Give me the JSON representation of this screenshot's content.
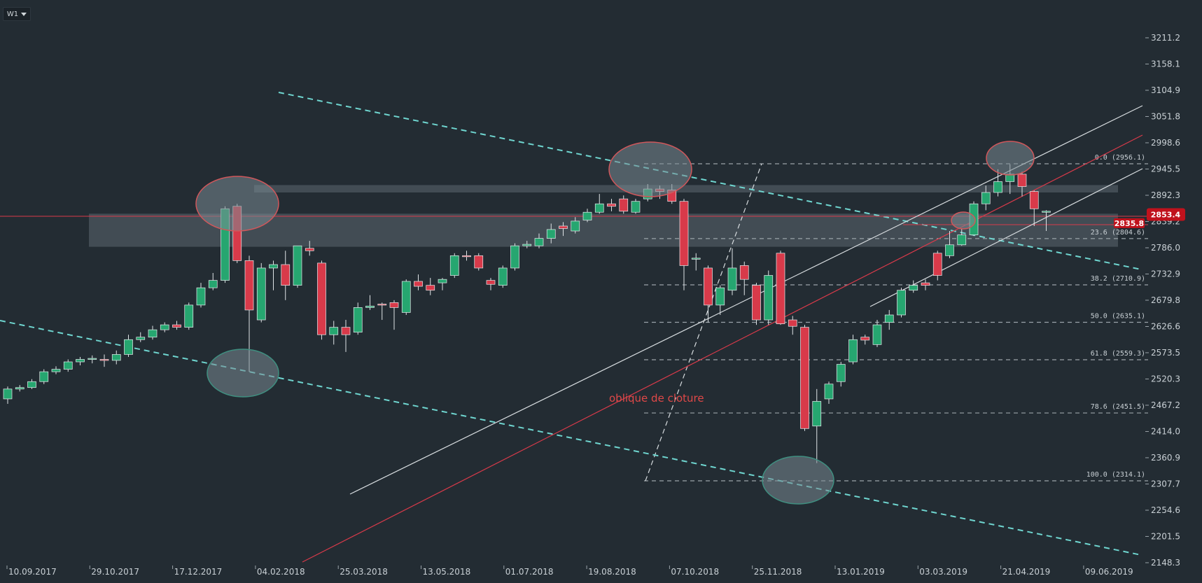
{
  "toolbar": {
    "timeframe": "W1"
  },
  "chart_data": {
    "type": "candlestick",
    "y_ticks": [
      3211.2,
      3158.1,
      3104.9,
      3051.8,
      2998.6,
      2945.5,
      2892.3,
      2839.2,
      2786.0,
      2732.9,
      2679.8,
      2626.6,
      2573.5,
      2520.3,
      2467.2,
      2414.0,
      2360.9,
      2307.7,
      2254.6,
      2201.5,
      2148.3
    ],
    "x_labels": [
      "10.09.2017",
      "29.10.2017",
      "17.12.2017",
      "04.02.2018",
      "25.03.2018",
      "13.05.2018",
      "01.07.2018",
      "19.08.2018",
      "07.10.2018",
      "25.11.2018",
      "13.01.2019",
      "03.03.2019",
      "21.04.2019",
      "09.06.2019"
    ],
    "candles": [
      [
        2480,
        2500,
        2470,
        2505
      ],
      [
        2500,
        2503,
        2495,
        2508
      ],
      [
        2503,
        2515,
        2500,
        2520
      ],
      [
        2515,
        2535,
        2510,
        2540
      ],
      [
        2535,
        2540,
        2530,
        2546
      ],
      [
        2540,
        2555,
        2535,
        2560
      ],
      [
        2555,
        2560,
        2548,
        2565
      ],
      [
        2560,
        2562,
        2552,
        2568
      ],
      [
        2560,
        2558,
        2545,
        2570
      ],
      [
        2558,
        2570,
        2550,
        2578
      ],
      [
        2570,
        2600,
        2565,
        2610
      ],
      [
        2600,
        2605,
        2595,
        2615
      ],
      [
        2605,
        2620,
        2600,
        2628
      ],
      [
        2620,
        2630,
        2615,
        2635
      ],
      [
        2630,
        2625,
        2620,
        2638
      ],
      [
        2625,
        2670,
        2620,
        2675
      ],
      [
        2670,
        2705,
        2665,
        2715
      ],
      [
        2705,
        2720,
        2700,
        2735
      ],
      [
        2720,
        2865,
        2715,
        2870
      ],
      [
        2870,
        2760,
        2755,
        2875
      ],
      [
        2760,
        2660,
        2535,
        2770
      ],
      [
        2640,
        2745,
        2635,
        2755
      ],
      [
        2745,
        2752,
        2700,
        2760
      ],
      [
        2752,
        2710,
        2680,
        2780
      ],
      [
        2710,
        2790,
        2705,
        2790
      ],
      [
        2785,
        2780,
        2770,
        2800
      ],
      [
        2755,
        2610,
        2600,
        2760
      ],
      [
        2610,
        2625,
        2590,
        2638
      ],
      [
        2625,
        2610,
        2575,
        2640
      ],
      [
        2615,
        2665,
        2610,
        2675
      ],
      [
        2665,
        2668,
        2660,
        2690
      ],
      [
        2672,
        2670,
        2640,
        2675
      ],
      [
        2675,
        2665,
        2620,
        2680
      ],
      [
        2655,
        2718,
        2650,
        2722
      ],
      [
        2718,
        2708,
        2700,
        2732
      ],
      [
        2710,
        2700,
        2690,
        2725
      ],
      [
        2715,
        2722,
        2700,
        2725
      ],
      [
        2730,
        2770,
        2725,
        2775
      ],
      [
        2770,
        2768,
        2760,
        2780
      ],
      [
        2770,
        2745,
        2740,
        2775
      ],
      [
        2720,
        2712,
        2700,
        2725
      ],
      [
        2710,
        2745,
        2705,
        2750
      ],
      [
        2745,
        2790,
        2740,
        2795
      ],
      [
        2790,
        2793,
        2785,
        2800
      ],
      [
        2790,
        2805,
        2785,
        2815
      ],
      [
        2805,
        2823,
        2795,
        2835
      ],
      [
        2830,
        2825,
        2810,
        2838
      ],
      [
        2820,
        2840,
        2815,
        2848
      ],
      [
        2842,
        2858,
        2838,
        2865
      ],
      [
        2858,
        2875,
        2855,
        2895
      ],
      [
        2875,
        2870,
        2860,
        2885
      ],
      [
        2885,
        2860,
        2855,
        2892
      ],
      [
        2858,
        2880,
        2855,
        2885
      ],
      [
        2885,
        2905,
        2880,
        2915
      ],
      [
        2905,
        2900,
        2885,
        2912
      ],
      [
        2903,
        2880,
        2875,
        2915
      ],
      [
        2880,
        2750,
        2700,
        2885
      ],
      [
        2765,
        2765,
        2740,
        2775
      ],
      [
        2745,
        2670,
        2635,
        2750
      ],
      [
        2670,
        2705,
        2650,
        2710
      ],
      [
        2700,
        2745,
        2690,
        2785
      ],
      [
        2750,
        2722,
        2690,
        2758
      ],
      [
        2710,
        2640,
        2630,
        2715
      ],
      [
        2640,
        2730,
        2630,
        2740
      ],
      [
        2775,
        2632,
        2630,
        2780
      ],
      [
        2640,
        2627,
        2610,
        2648
      ],
      [
        2625,
        2420,
        2415,
        2630
      ],
      [
        2425,
        2475,
        2350,
        2500
      ],
      [
        2480,
        2510,
        2470,
        2515
      ],
      [
        2515,
        2550,
        2505,
        2555
      ],
      [
        2555,
        2600,
        2550,
        2610
      ],
      [
        2605,
        2599,
        2590,
        2610
      ],
      [
        2590,
        2630,
        2585,
        2640
      ],
      [
        2635,
        2650,
        2620,
        2660
      ],
      [
        2650,
        2700,
        2645,
        2705
      ],
      [
        2700,
        2710,
        2695,
        2720
      ],
      [
        2715,
        2710,
        2700,
        2722
      ],
      [
        2775,
        2730,
        2720,
        2780
      ],
      [
        2770,
        2792,
        2765,
        2820
      ],
      [
        2792,
        2812,
        2790,
        2825
      ],
      [
        2812,
        2875,
        2810,
        2880
      ],
      [
        2875,
        2898,
        2862,
        2912
      ],
      [
        2898,
        2920,
        2890,
        2945
      ],
      [
        2920,
        2935,
        2895,
        2955
      ],
      [
        2935,
        2910,
        2890,
        2940
      ],
      [
        2900,
        2865,
        2830,
        2902
      ],
      [
        2860,
        2860,
        2820,
        2862
      ]
    ],
    "fib_levels": [
      {
        "label": "0.0 (2956.1)",
        "value": 2956.1
      },
      {
        "label": "23.6 (2804.6)",
        "value": 2804.6
      },
      {
        "label": "38.2 (2710.9)",
        "value": 2710.9
      },
      {
        "label": "50.0 (2635.1)",
        "value": 2635.1
      },
      {
        "label": "61.8 (2559.3)",
        "value": 2559.3
      },
      {
        "label": "78.6 (2451.5)",
        "value": 2451.5
      },
      {
        "label": "100.0 (2314.1)",
        "value": 2314.1
      }
    ],
    "current_price": "2853.4",
    "marked_price": "2835.8",
    "annotation": "oblique de cloture",
    "colors": {
      "background": "#232c33",
      "up": "#26a670",
      "down": "#d83a4a",
      "trend_teal": "#6fd6d0",
      "channel": "#d8dde0",
      "oblique_red": "#d83a4a",
      "zone": "#5c6770",
      "badge": "#c0121c"
    }
  }
}
